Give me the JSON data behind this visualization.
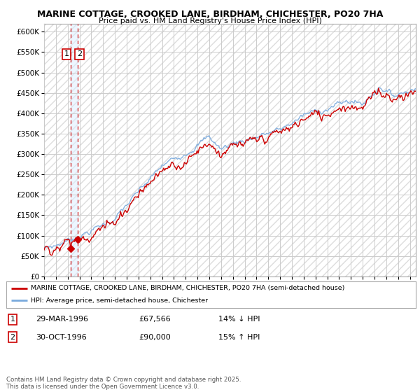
{
  "title1": "MARINE COTTAGE, CROOKED LANE, BIRDHAM, CHICHESTER, PO20 7HA",
  "title2": "Price paid vs. HM Land Registry's House Price Index (HPI)",
  "legend_line1": "MARINE COTTAGE, CROOKED LANE, BIRDHAM, CHICHESTER, PO20 7HA (semi-detached house)",
  "legend_line2": "HPI: Average price, semi-detached house, Chichester",
  "purchase1_date": "29-MAR-1996",
  "purchase1_price": "£67,566",
  "purchase1_hpi": "14% ↓ HPI",
  "purchase2_date": "30-OCT-1996",
  "purchase2_price": "£90,000",
  "purchase2_hpi": "15% ↑ HPI",
  "footnote": "Contains HM Land Registry data © Crown copyright and database right 2025.\nThis data is licensed under the Open Government Licence v3.0.",
  "price_line_color": "#cc0000",
  "hpi_line_color": "#7aaadd",
  "vline_color": "#cc0000",
  "vfill_color": "#ddeeff",
  "background_color": "#ffffff",
  "grid_color": "#cccccc",
  "hatch_color": "#dddddd",
  "ylim": [
    0,
    620000
  ],
  "yticks": [
    0,
    50000,
    100000,
    150000,
    200000,
    250000,
    300000,
    350000,
    400000,
    450000,
    500000,
    550000,
    600000
  ],
  "p1_year": 1996.24,
  "p1_price": 67566,
  "p2_year": 1996.83,
  "p2_price": 90000,
  "xlim_start": 1994,
  "xlim_end": 2025.5
}
